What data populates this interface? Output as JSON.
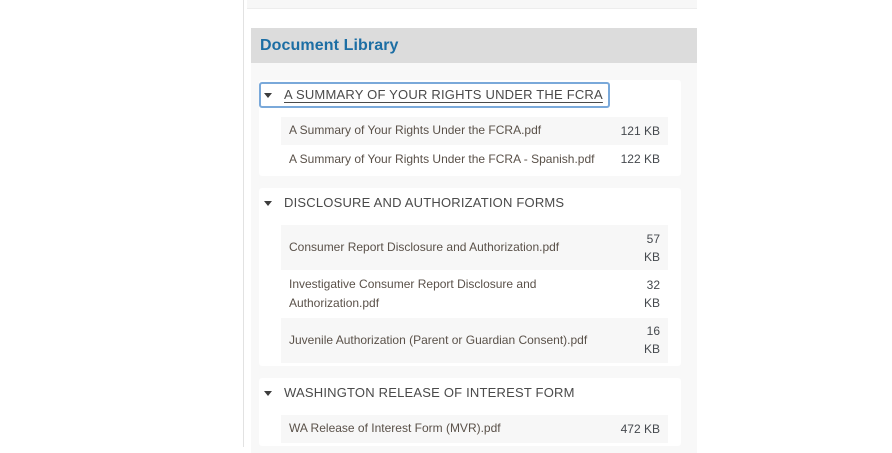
{
  "panel": {
    "title": "Document Library"
  },
  "icons": {
    "section_toggle": "triangle-down"
  },
  "colors": {
    "panel_title": "#1c6ea4",
    "panel_header_bar": "#dcdcdc",
    "panel_body_bg": "#f8f8f8",
    "card_bg": "#ffffff",
    "row_stripe": "#f7f7f7",
    "focus_ring": "#7aa9da",
    "section_title_text": "#4a4a4a",
    "file_name_text": "#5a5149",
    "file_size_text": "#45494e"
  },
  "sections": [
    {
      "title": "A SUMMARY OF YOUR RIGHTS UNDER THE FCRA",
      "expanded": true,
      "focused": true,
      "files": [
        {
          "name": "A Summary of Your Rights Under the FCRA.pdf",
          "size": "121 KB",
          "size_wrap": false
        },
        {
          "name": "A Summary of Your Rights Under the FCRA - Spanish.pdf",
          "size": "122 KB",
          "size_wrap": false
        }
      ]
    },
    {
      "title": "DISCLOSURE AND AUTHORIZATION FORMS",
      "expanded": true,
      "focused": false,
      "files": [
        {
          "name": "Consumer Report Disclosure and Authorization.pdf",
          "size": "57 KB",
          "size_wrap": true
        },
        {
          "name": "Investigative Consumer Report Disclosure and Authorization.pdf",
          "size": "32 KB",
          "size_wrap": true
        },
        {
          "name": "Juvenile Authorization (Parent or Guardian Consent).pdf",
          "size": "16 KB",
          "size_wrap": true
        }
      ]
    },
    {
      "title": "WASHINGTON RELEASE OF INTEREST FORM",
      "expanded": true,
      "focused": false,
      "files": [
        {
          "name": "WA Release of Interest Form (MVR).pdf",
          "size": "472 KB",
          "size_wrap": false
        }
      ]
    }
  ]
}
